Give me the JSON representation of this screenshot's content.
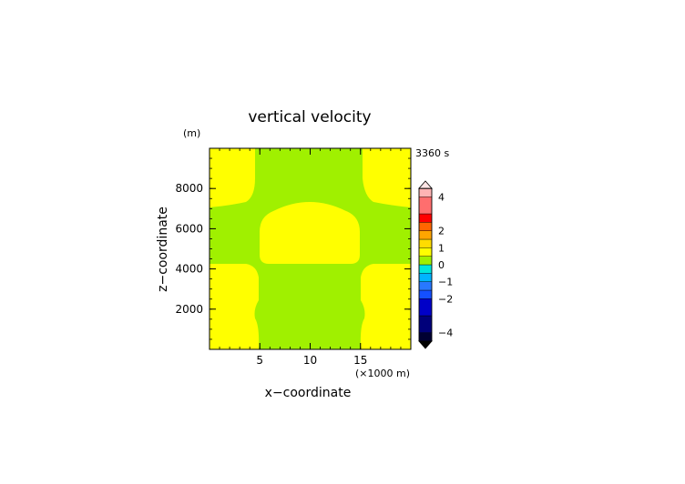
{
  "chart_data": {
    "type": "heatmap",
    "title": "vertical velocity",
    "xlabel": "x−coordinate",
    "ylabel": "z−coordinate",
    "y_unit": "(m)",
    "x_unit": "(×1000 m)",
    "time_label": "3360 s",
    "xlim": [
      0,
      20
    ],
    "ylim": [
      0,
      10000
    ],
    "x_ticks": [
      5,
      10,
      15
    ],
    "y_ticks": [
      2000,
      4000,
      6000,
      8000
    ],
    "colorbar": {
      "tick_labels": [
        "4",
        "2",
        "1",
        "0",
        "−1",
        "−2",
        "−4"
      ],
      "tick_values": [
        4,
        2,
        1,
        0,
        -1,
        -2,
        -4
      ],
      "colors": [
        "#000033",
        "#00007a",
        "#0000c8",
        "#1450ff",
        "#2878ff",
        "#00b4ff",
        "#00e6dc",
        "#a0f000",
        "#ffff00",
        "#ffdc00",
        "#ffa500",
        "#ff6600",
        "#ff0000",
        "#ff6e6e",
        "#ffb4b4",
        "#ffd8d8"
      ],
      "levels": [
        -4.5,
        -4,
        -3,
        -2,
        -1.5,
        -1,
        -0.5,
        0,
        0.5,
        1,
        1.5,
        2,
        2.5,
        3,
        4,
        4.5
      ]
    },
    "field_colors": {
      "positive": "#ffff00",
      "near_zero": "#a0f000"
    }
  }
}
